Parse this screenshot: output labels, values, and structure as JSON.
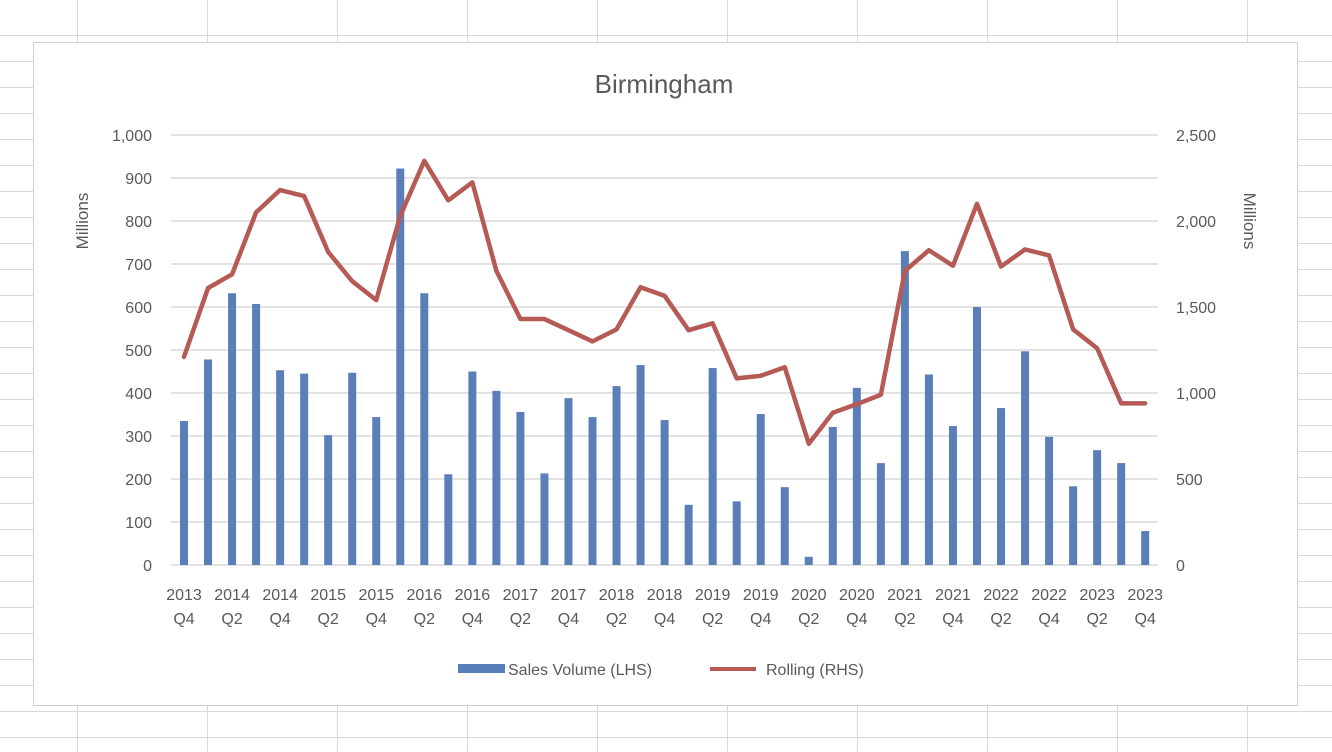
{
  "chart_data": {
    "type": "bar+line",
    "title": "Birmingham",
    "ylabel_left": "Millions",
    "ylabel_right": "Millions",
    "ylim_left": [
      0,
      1000
    ],
    "ylim_right": [
      0,
      2500
    ],
    "yticks_left": [
      "0",
      "100",
      "200",
      "300",
      "400",
      "500",
      "600",
      "700",
      "800",
      "900",
      "1,000"
    ],
    "yticks_right": [
      "0",
      "500",
      "1,000",
      "1,500",
      "2,000",
      "2,500"
    ],
    "grid": true,
    "legend_position": "bottom",
    "x_tick_labels": [
      [
        "2013",
        "Q4"
      ],
      [
        "2014",
        "Q2"
      ],
      [
        "2014",
        "Q4"
      ],
      [
        "2015",
        "Q2"
      ],
      [
        "2015",
        "Q4"
      ],
      [
        "2016",
        "Q2"
      ],
      [
        "2016",
        "Q4"
      ],
      [
        "2017",
        "Q2"
      ],
      [
        "2017",
        "Q4"
      ],
      [
        "2018",
        "Q2"
      ],
      [
        "2018",
        "Q4"
      ],
      [
        "2019",
        "Q2"
      ],
      [
        "2019",
        "Q4"
      ],
      [
        "2020",
        "Q2"
      ],
      [
        "2020",
        "Q4"
      ],
      [
        "2021",
        "Q2"
      ],
      [
        "2021",
        "Q4"
      ],
      [
        "2022",
        "Q2"
      ],
      [
        "2022",
        "Q4"
      ],
      [
        "2023",
        "Q2"
      ],
      [
        "2023",
        "Q4"
      ]
    ],
    "series": [
      {
        "name": "Sales Volume (LHS)",
        "type": "bar",
        "axis": "left",
        "color": "#5a7fb8",
        "values": [
          335,
          478,
          632,
          607,
          453,
          445,
          302,
          447,
          344,
          922,
          632,
          211,
          450,
          405,
          356,
          213,
          388,
          344,
          416,
          465,
          337,
          140,
          458,
          148,
          351,
          181,
          19,
          321,
          412,
          237,
          730,
          443,
          323,
          600,
          365,
          497,
          298,
          183,
          267,
          237,
          79
        ]
      },
      {
        "name": "Rolling (RHS)",
        "type": "line",
        "axis": "right",
        "color": "#b55a55",
        "values": [
          1210,
          1610,
          1690,
          2050,
          2180,
          2145,
          1820,
          1650,
          1540,
          2030,
          2350,
          2120,
          2225,
          1710,
          1430,
          1430,
          1365,
          1300,
          1370,
          1615,
          1565,
          1365,
          1405,
          1085,
          1100,
          1150,
          705,
          885,
          935,
          990,
          1710,
          1830,
          1740,
          2100,
          1735,
          1835,
          1800,
          1370,
          1260,
          940,
          940
        ]
      }
    ]
  }
}
